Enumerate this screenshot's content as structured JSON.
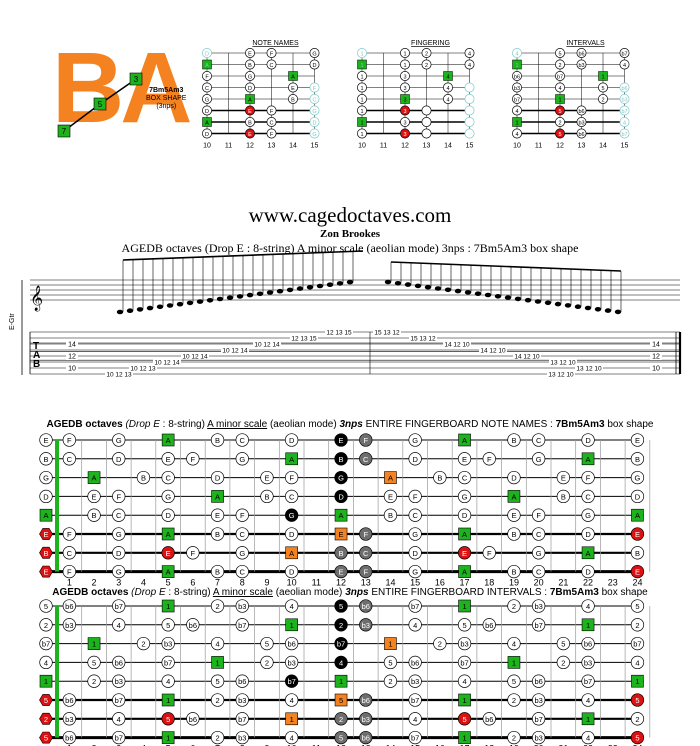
{
  "header": {
    "logo_text": "BA",
    "shape_name": "7Bm5Am3",
    "shape_caption": "BOX SHAPE",
    "shape_note": "(3nps)",
    "logo_markers": [
      "7",
      "5",
      "3"
    ]
  },
  "mini_diagrams": [
    {
      "title": "NOTE NAMES",
      "label_set": "notes"
    },
    {
      "title": "FINGERING",
      "label_set": "fingers"
    },
    {
      "title": "INTERVALS",
      "label_set": "intervals"
    }
  ],
  "mini_frets": [
    "10",
    "11",
    "12",
    "13",
    "14",
    "15"
  ],
  "site_title": "www.cagedoctaves.com",
  "author": "Zon Brookes",
  "subtitle": "AGEDB octaves (Drop E : 8-string) A minor scale (aeolian mode) 3nps : 7Bm5Am3 box shape",
  "tab": {
    "instrument_label": "E-Gtr",
    "letters": [
      "T",
      "A",
      "B"
    ],
    "left_chord": [
      "14",
      "12",
      "10"
    ],
    "right_chord": [
      "14",
      "12",
      "10"
    ],
    "runs": [
      {
        "s": 8,
        "x0": 110,
        "v": [
          "10",
          "12",
          "13"
        ]
      },
      {
        "s": 7,
        "x0": 134,
        "v": [
          "10",
          "12",
          "13"
        ]
      },
      {
        "s": 6,
        "x0": 158,
        "v": [
          "10",
          "12",
          "14"
        ]
      },
      {
        "s": 5,
        "x0": 186,
        "v": [
          "10",
          "12",
          "14"
        ]
      },
      {
        "s": 4,
        "x0": 226,
        "v": [
          "10",
          "12",
          "14"
        ]
      },
      {
        "s": 3,
        "x0": 258,
        "v": [
          "10",
          "12",
          "14"
        ]
      },
      {
        "s": 2,
        "x0": 295,
        "v": [
          "12",
          "13",
          "15"
        ]
      },
      {
        "s": 1,
        "x0": 330,
        "v": [
          "12",
          "13",
          "15"
        ]
      },
      {
        "s": 1,
        "x0": 378,
        "v": [
          "15",
          "13",
          "12"
        ]
      },
      {
        "s": 2,
        "x0": 414,
        "v": [
          "15",
          "13",
          "12"
        ]
      },
      {
        "s": 3,
        "x0": 448,
        "v": [
          "14",
          "12",
          "10"
        ]
      },
      {
        "s": 4,
        "x0": 484,
        "v": [
          "14",
          "12",
          "10"
        ]
      },
      {
        "s": 5,
        "x0": 518,
        "v": [
          "14",
          "12",
          "10"
        ]
      },
      {
        "s": 6,
        "x0": 554,
        "v": [
          "13",
          "12",
          "10"
        ]
      },
      {
        "s": 7,
        "x0": 580,
        "v": [
          "13",
          "12",
          "10"
        ]
      },
      {
        "s": 8,
        "x0": 552,
        "v": [
          "13",
          "12",
          "10"
        ]
      }
    ]
  },
  "fretboard_notes": {
    "title_bold": "AGEDB octaves",
    "title_italic": "(Drop E",
    "title_mid": ": 8-string)",
    "title_scale": "A minor scale",
    "title_rest": "(aeolian mode)",
    "title_nps": "3nps",
    "title_tail": "ENTIRE FINGERBOARD NOTE NAMES :",
    "title_shape": "7Bm5Am3",
    "title_end": "box shape"
  },
  "fretboard_intervals": {
    "title_bold": "AGEDB octaves",
    "title_italic": "(Drop E",
    "title_mid": ": 8-string)",
    "title_scale": "A minor scale",
    "title_rest": "(aeolian mode)",
    "title_nps": "3nps",
    "title_tail": "ENTIRE FINGERBOARD INTERVALS :",
    "title_shape": "7Bm5Am3",
    "title_end": "box shape"
  },
  "fret_numbers": [
    "1",
    "2",
    "3",
    "4",
    "5",
    "6",
    "7",
    "8",
    "9",
    "10",
    "11",
    "12",
    "13",
    "14",
    "15",
    "16",
    "17",
    "18",
    "19",
    "20",
    "21",
    "22",
    "23",
    "24"
  ],
  "open_strings": [
    "E",
    "B",
    "G",
    "D",
    "A",
    "E",
    "B",
    "E"
  ],
  "open_intervals": [
    "5",
    "2",
    "b7",
    "4",
    "1",
    "5",
    "2",
    "5"
  ],
  "colors": {
    "green": "#1db31d",
    "red": "#dd1111",
    "orange": "#f58220",
    "black": "#000000",
    "gray": "#6e6e6e",
    "light_blue": "#7ec8c8"
  }
}
